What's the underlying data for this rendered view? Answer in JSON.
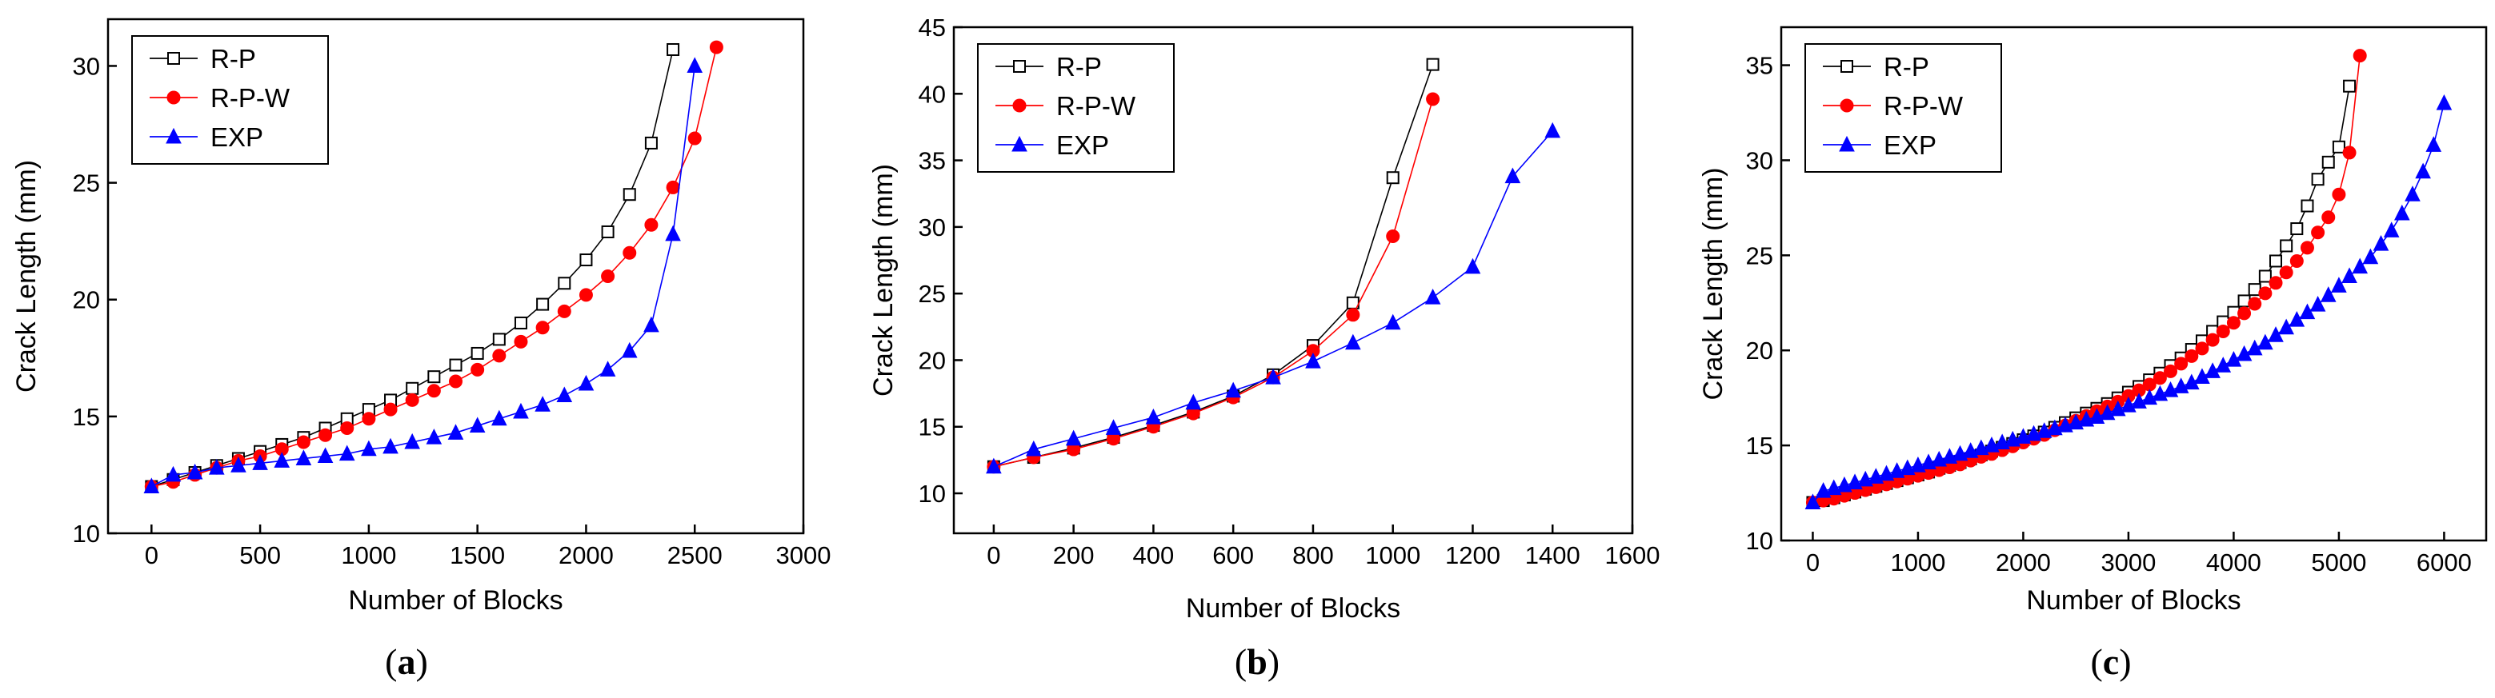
{
  "chart_data": [
    {
      "type": "line",
      "panel_label": "a",
      "xlabel": "Number of Blocks",
      "ylabel": "Crack Length (mm)",
      "xlim": [
        -200,
        3000
      ],
      "ylim": [
        10,
        32
      ],
      "xticks": [
        0,
        500,
        1000,
        1500,
        2000,
        2500,
        3000
      ],
      "yticks": [
        10,
        15,
        20,
        25,
        30
      ],
      "legend_position": "top-left",
      "series": [
        {
          "name": "R-P",
          "color": "#000000",
          "marker": "square",
          "x": [
            0,
            100,
            200,
            300,
            400,
            500,
            600,
            700,
            800,
            900,
            1000,
            1100,
            1200,
            1300,
            1400,
            1500,
            1600,
            1700,
            1800,
            1900,
            2000,
            2100,
            2200,
            2300,
            2400
          ],
          "y": [
            12.0,
            12.3,
            12.6,
            12.9,
            13.2,
            13.5,
            13.8,
            14.1,
            14.5,
            14.9,
            15.3,
            15.7,
            16.2,
            16.7,
            17.2,
            17.7,
            18.3,
            19.0,
            19.8,
            20.7,
            21.7,
            22.9,
            24.5,
            26.7,
            30.7
          ]
        },
        {
          "name": "R-P-W",
          "color": "#ff0000",
          "marker": "circle",
          "x": [
            0,
            100,
            200,
            300,
            400,
            500,
            600,
            700,
            800,
            900,
            1000,
            1100,
            1200,
            1300,
            1400,
            1500,
            1600,
            1700,
            1800,
            1900,
            2000,
            2100,
            2200,
            2300,
            2400,
            2500,
            2600
          ],
          "y": [
            12.0,
            12.2,
            12.5,
            12.8,
            13.1,
            13.3,
            13.6,
            13.9,
            14.2,
            14.5,
            14.9,
            15.3,
            15.7,
            16.1,
            16.5,
            17.0,
            17.6,
            18.2,
            18.8,
            19.5,
            20.2,
            21.0,
            22.0,
            23.2,
            24.8,
            26.9,
            30.8
          ]
        },
        {
          "name": "EXP",
          "color": "#0000ff",
          "marker": "triangle",
          "x": [
            0,
            100,
            200,
            300,
            400,
            500,
            600,
            700,
            800,
            900,
            1000,
            1100,
            1200,
            1300,
            1400,
            1500,
            1600,
            1700,
            1800,
            1900,
            2000,
            2100,
            2200,
            2300,
            2400,
            2500
          ],
          "y": [
            12.0,
            12.5,
            12.6,
            12.8,
            12.9,
            13.0,
            13.1,
            13.2,
            13.3,
            13.4,
            13.6,
            13.7,
            13.9,
            14.1,
            14.3,
            14.6,
            14.9,
            15.2,
            15.5,
            15.9,
            16.4,
            17.0,
            17.8,
            18.9,
            22.8,
            30.0
          ]
        }
      ]
    },
    {
      "type": "line",
      "panel_label": "b",
      "xlabel": "Number of Blocks",
      "ylabel": "Crack Length (mm)",
      "xlim": [
        -100,
        1600
      ],
      "ylim": [
        7,
        45
      ],
      "xticks": [
        0,
        200,
        400,
        600,
        800,
        1000,
        1200,
        1400,
        1600
      ],
      "yticks": [
        10,
        15,
        20,
        25,
        30,
        35,
        40,
        45
      ],
      "legend_position": "top-left",
      "series": [
        {
          "name": "R-P",
          "color": "#000000",
          "marker": "square",
          "x": [
            0,
            100,
            200,
            300,
            400,
            500,
            600,
            700,
            800,
            900,
            1000,
            1100
          ],
          "y": [
            12.0,
            12.7,
            13.4,
            14.2,
            15.1,
            16.1,
            17.3,
            18.9,
            21.1,
            24.3,
            33.7,
            42.2
          ]
        },
        {
          "name": "R-P-W",
          "color": "#ff0000",
          "marker": "circle",
          "x": [
            0,
            100,
            200,
            300,
            400,
            500,
            600,
            700,
            800,
            900,
            1000,
            1100
          ],
          "y": [
            12.0,
            12.7,
            13.3,
            14.1,
            15.0,
            16.0,
            17.2,
            18.7,
            20.7,
            23.4,
            29.3,
            39.6
          ]
        },
        {
          "name": "EXP",
          "color": "#0000ff",
          "marker": "triangle",
          "x": [
            0,
            100,
            200,
            300,
            400,
            500,
            600,
            700,
            800,
            900,
            1000,
            1100,
            1200,
            1300,
            1400
          ],
          "y": [
            12.0,
            13.3,
            14.1,
            14.9,
            15.7,
            16.8,
            17.7,
            18.7,
            19.9,
            21.3,
            22.8,
            24.7,
            27.0,
            33.8,
            37.2
          ]
        }
      ]
    },
    {
      "type": "line",
      "panel_label": "c",
      "xlabel": "Number of Blocks",
      "ylabel": "Crack Length (mm)",
      "xlim": [
        -300,
        6400
      ],
      "ylim": [
        10,
        37
      ],
      "xticks": [
        0,
        1000,
        2000,
        3000,
        4000,
        5000,
        6000
      ],
      "yticks": [
        10,
        15,
        20,
        25,
        30,
        35
      ],
      "legend_position": "top-left",
      "series": [
        {
          "name": "R-P",
          "color": "#000000",
          "marker": "square",
          "x": [
            0,
            100,
            200,
            300,
            400,
            500,
            600,
            700,
            800,
            900,
            1000,
            1100,
            1200,
            1300,
            1400,
            1500,
            1600,
            1700,
            1800,
            1900,
            2000,
            2100,
            2200,
            2300,
            2400,
            2500,
            2600,
            2700,
            2800,
            2900,
            3000,
            3100,
            3200,
            3300,
            3400,
            3500,
            3600,
            3700,
            3800,
            3900,
            4000,
            4100,
            4200,
            4300,
            4400,
            4500,
            4600,
            4700,
            4800,
            4900,
            5000,
            5100
          ],
          "y": [
            12.0,
            12.1,
            12.25,
            12.4,
            12.55,
            12.7,
            12.85,
            13.0,
            13.15,
            13.3,
            13.45,
            13.6,
            13.8,
            13.95,
            14.1,
            14.3,
            14.5,
            14.7,
            14.9,
            15.1,
            15.3,
            15.5,
            15.7,
            15.95,
            16.2,
            16.45,
            16.7,
            16.95,
            17.2,
            17.5,
            17.8,
            18.1,
            18.45,
            18.8,
            19.2,
            19.6,
            20.05,
            20.5,
            21.0,
            21.5,
            22.0,
            22.6,
            23.2,
            23.9,
            24.7,
            25.5,
            26.4,
            27.6,
            29.0,
            29.9,
            30.7,
            33.9
          ]
        },
        {
          "name": "R-P-W",
          "color": "#ff0000",
          "marker": "circle",
          "x": [
            0,
            100,
            200,
            300,
            400,
            500,
            600,
            700,
            800,
            900,
            1000,
            1100,
            1200,
            1300,
            1400,
            1500,
            1600,
            1700,
            1800,
            1900,
            2000,
            2100,
            2200,
            2300,
            2400,
            2500,
            2600,
            2700,
            2800,
            2900,
            3000,
            3100,
            3200,
            3300,
            3400,
            3500,
            3600,
            3700,
            3800,
            3900,
            4000,
            4100,
            4200,
            4300,
            4400,
            4500,
            4600,
            4700,
            4800,
            4900,
            5000,
            5100,
            5200
          ],
          "y": [
            12.0,
            12.1,
            12.2,
            12.35,
            12.5,
            12.65,
            12.8,
            12.95,
            13.1,
            13.25,
            13.4,
            13.55,
            13.7,
            13.85,
            14.0,
            14.2,
            14.4,
            14.55,
            14.75,
            14.95,
            15.15,
            15.35,
            15.55,
            15.8,
            16.05,
            16.3,
            16.55,
            16.8,
            17.05,
            17.3,
            17.6,
            17.9,
            18.2,
            18.55,
            18.9,
            19.3,
            19.7,
            20.1,
            20.55,
            21.0,
            21.45,
            21.95,
            22.45,
            23.0,
            23.55,
            24.1,
            24.7,
            25.4,
            26.2,
            27.0,
            28.2,
            30.4,
            35.5
          ]
        },
        {
          "name": "EXP",
          "color": "#0000ff",
          "marker": "triangle",
          "x": [
            0,
            100,
            200,
            300,
            400,
            500,
            600,
            700,
            800,
            900,
            1000,
            1100,
            1200,
            1300,
            1400,
            1500,
            1600,
            1700,
            1800,
            1900,
            2000,
            2100,
            2200,
            2300,
            2400,
            2500,
            2600,
            2700,
            2800,
            2900,
            3000,
            3100,
            3200,
            3300,
            3400,
            3500,
            3600,
            3700,
            3800,
            3900,
            4000,
            4100,
            4200,
            4300,
            4400,
            4500,
            4600,
            4700,
            4800,
            4900,
            5000,
            5100,
            5200,
            5300,
            5400,
            5500,
            5600,
            5700,
            5800,
            5900,
            6000
          ],
          "y": [
            12.0,
            12.6,
            12.75,
            12.9,
            13.05,
            13.2,
            13.35,
            13.5,
            13.65,
            13.8,
            13.95,
            14.1,
            14.25,
            14.4,
            14.55,
            14.7,
            14.85,
            15.0,
            15.15,
            15.3,
            15.45,
            15.6,
            15.75,
            15.9,
            16.05,
            16.2,
            16.35,
            16.5,
            16.7,
            16.9,
            17.1,
            17.3,
            17.5,
            17.7,
            17.9,
            18.1,
            18.3,
            18.6,
            18.9,
            19.2,
            19.5,
            19.8,
            20.1,
            20.4,
            20.8,
            21.2,
            21.6,
            22.0,
            22.4,
            22.9,
            23.4,
            23.9,
            24.4,
            24.9,
            25.6,
            26.3,
            27.2,
            28.2,
            29.4,
            30.8,
            33.0
          ]
        }
      ]
    }
  ]
}
